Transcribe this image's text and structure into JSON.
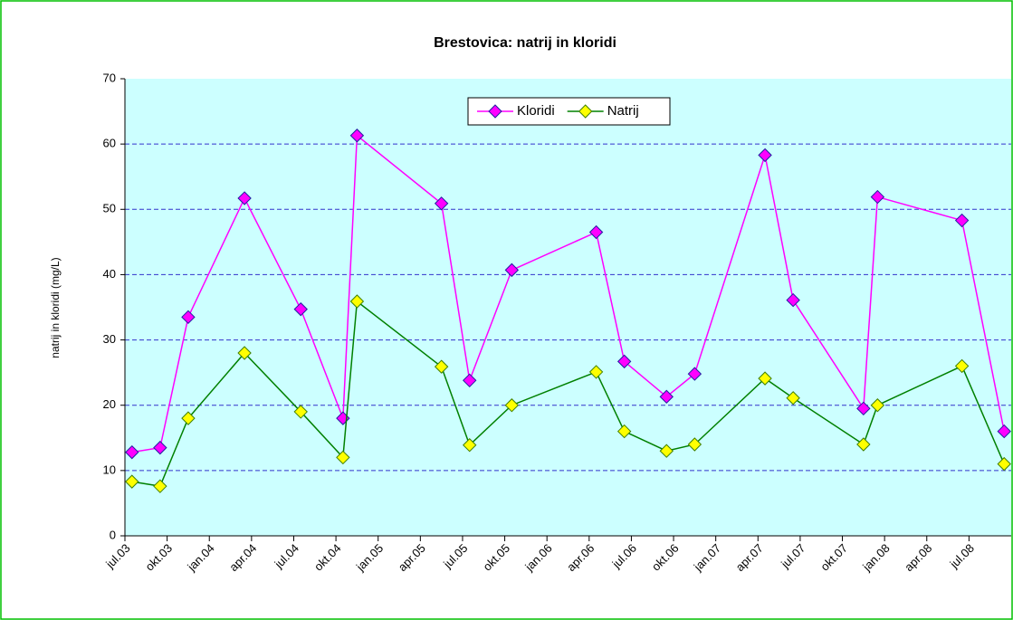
{
  "chart_data": {
    "type": "line",
    "title": "Brestovica: natrij in kloridi",
    "ylabel": "natrij in kloridi (mg/L)",
    "x": [
      "2003-07",
      "2003-09",
      "2003-11",
      "2004-03",
      "2004-07",
      "2004-10",
      "2004-11",
      "2005-05",
      "2005-07",
      "2005-10",
      "2006-04",
      "2006-06",
      "2006-09",
      "2006-11",
      "2007-04",
      "2007-06",
      "2007-11",
      "2007-12",
      "2008-06",
      "2008-09"
    ],
    "series": [
      {
        "name": "Kloridi",
        "color": "#ff00ff",
        "marker_color": "#ff00ff",
        "marker_edge": "#2020a0",
        "values": [
          12.8,
          13.5,
          33.5,
          51.7,
          34.7,
          18,
          61.3,
          50.9,
          23.8,
          40.7,
          46.5,
          26.7,
          21.3,
          24.8,
          58.3,
          36.1,
          19.5,
          51.9,
          48.3,
          16
        ]
      },
      {
        "name": "Natrij",
        "color": "#008000",
        "marker_color": "#ffff00",
        "marker_edge": "#408000",
        "values": [
          8.3,
          7.6,
          18,
          28,
          19,
          12,
          35.9,
          25.9,
          13.9,
          20,
          25.1,
          16,
          13,
          14,
          24.1,
          21.1,
          14,
          20,
          26,
          11
        ]
      }
    ],
    "xlim": [
      "2003-07",
      "2008-10"
    ],
    "xticks": [
      {
        "value": "2003-07",
        "label": "jul.03"
      },
      {
        "value": "2003-10",
        "label": "okt.03"
      },
      {
        "value": "2004-01",
        "label": "jan.04"
      },
      {
        "value": "2004-04",
        "label": "apr.04"
      },
      {
        "value": "2004-07",
        "label": "jul.04"
      },
      {
        "value": "2004-10",
        "label": "okt.04"
      },
      {
        "value": "2005-01",
        "label": "jan.05"
      },
      {
        "value": "2005-04",
        "label": "apr.05"
      },
      {
        "value": "2005-07",
        "label": "jul.05"
      },
      {
        "value": "2005-10",
        "label": "okt.05"
      },
      {
        "value": "2006-01",
        "label": "jan.06"
      },
      {
        "value": "2006-04",
        "label": "apr.06"
      },
      {
        "value": "2006-07",
        "label": "jul.06"
      },
      {
        "value": "2006-10",
        "label": "okt.06"
      },
      {
        "value": "2007-01",
        "label": "jan.07"
      },
      {
        "value": "2007-04",
        "label": "apr.07"
      },
      {
        "value": "2007-07",
        "label": "jul.07"
      },
      {
        "value": "2007-10",
        "label": "okt.07"
      },
      {
        "value": "2008-01",
        "label": "jan.08"
      },
      {
        "value": "2008-04",
        "label": "apr.08"
      },
      {
        "value": "2008-07",
        "label": "jul.08"
      }
    ],
    "ylim": [
      0,
      70
    ],
    "yticks": [
      0,
      10,
      20,
      30,
      40,
      50,
      60,
      70
    ],
    "grid": true,
    "legend": "top"
  }
}
